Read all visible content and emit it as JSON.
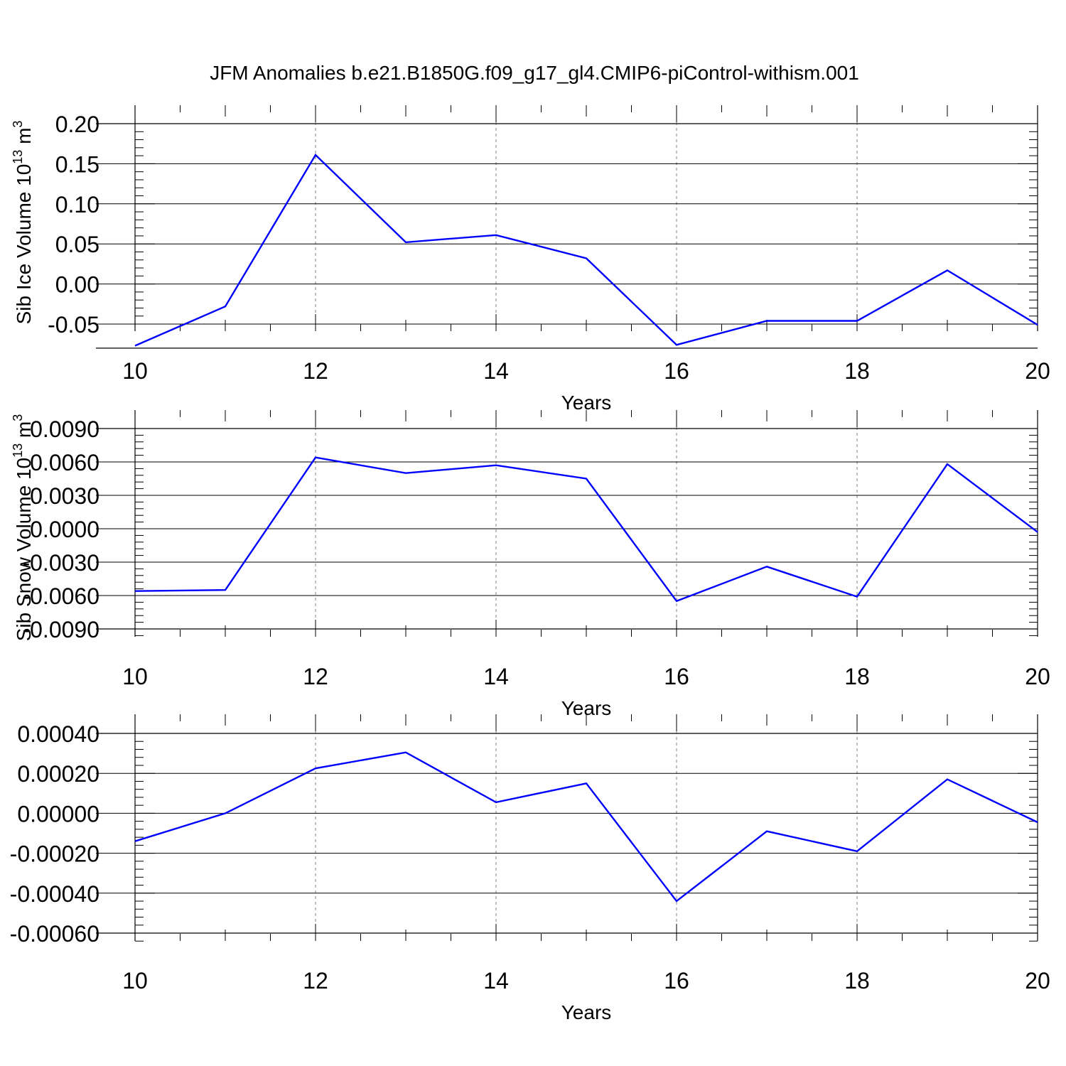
{
  "figure": {
    "title": "JFM Anomalies b.e21.B1850G.f09_g17_gl4.CMIP6-piControl-withism.001"
  },
  "colors": {
    "line": "#0000ff",
    "axis": "#000000",
    "grid": "#808080"
  },
  "chart_data": [
    {
      "type": "line",
      "xlabel": "Years",
      "ylabel": "Sib Ice Volume 10",
      "ylabel_sup": "13",
      "ylabel_unit": "m",
      "ylabel_unit_sup": "3",
      "xlim": [
        10,
        20
      ],
      "ylim": [
        -0.08,
        0.2
      ],
      "grid_x_dashed": true,
      "x_ticks": [
        10,
        12,
        14,
        16,
        18,
        20
      ],
      "x_tick_labels": [
        "10",
        "12",
        "14",
        "16",
        "18",
        "20"
      ],
      "y_ticks": [
        -0.05,
        0.0,
        0.05,
        0.1,
        0.15,
        0.2
      ],
      "y_tick_labels": [
        "-0.05",
        "0.00",
        "0.05",
        "0.10",
        "0.15",
        "0.20"
      ],
      "x": [
        10,
        11,
        12,
        13,
        14,
        15,
        16,
        17,
        18,
        19,
        20
      ],
      "values": [
        -0.077,
        -0.028,
        0.161,
        0.052,
        0.061,
        0.032,
        -0.076,
        -0.046,
        -0.046,
        0.017,
        -0.051
      ]
    },
    {
      "type": "line",
      "xlabel": "Years",
      "ylabel": "Sib Snow Volume 10",
      "ylabel_sup": "13",
      "ylabel_unit": "m",
      "ylabel_unit_sup": "3",
      "xlim": [
        10,
        20
      ],
      "ylim": [
        -0.009,
        0.0091
      ],
      "grid_x_dashed": true,
      "x_ticks": [
        10,
        12,
        14,
        16,
        18,
        20
      ],
      "x_tick_labels": [
        "10",
        "12",
        "14",
        "16",
        "18",
        "20"
      ],
      "y_ticks": [
        -0.009,
        -0.006,
        -0.003,
        0.0,
        0.003,
        0.006,
        0.009
      ],
      "y_tick_labels": [
        "-0.0090",
        "-0.0060",
        "-0.0030",
        "0.0000",
        "0.0030",
        "0.0060",
        "0.0090"
      ],
      "x": [
        10,
        11,
        12,
        13,
        14,
        15,
        16,
        17,
        18,
        19,
        20
      ],
      "values": [
        -0.0056,
        -0.0055,
        0.0064,
        0.005,
        0.0057,
        0.0045,
        -0.0065,
        -0.0034,
        -0.0061,
        0.0058,
        -0.0003
      ]
    },
    {
      "type": "line",
      "xlabel": "Years",
      "xlim": [
        10,
        20
      ],
      "ylim": [
        -0.0006,
        0.0004
      ],
      "grid_x_dashed": true,
      "x_ticks": [
        10,
        12,
        14,
        16,
        18,
        20
      ],
      "x_tick_labels": [
        "10",
        "12",
        "14",
        "16",
        "18",
        "20"
      ],
      "y_ticks": [
        -0.0006,
        -0.0004,
        -0.0002,
        0.0,
        0.0002,
        0.0004
      ],
      "y_tick_labels": [
        "-0.00060",
        "-0.00040",
        "-0.00020",
        "0.00000",
        "0.00020",
        "0.00040"
      ],
      "x": [
        10,
        11,
        12,
        13,
        14,
        15,
        16,
        17,
        18,
        19,
        20
      ],
      "values": [
        -0.00014,
        0.0,
        0.000225,
        0.000305,
        5.5e-05,
        0.00015,
        -0.00044,
        -9e-05,
        -0.00019,
        0.00017,
        -4.5e-05
      ]
    }
  ]
}
